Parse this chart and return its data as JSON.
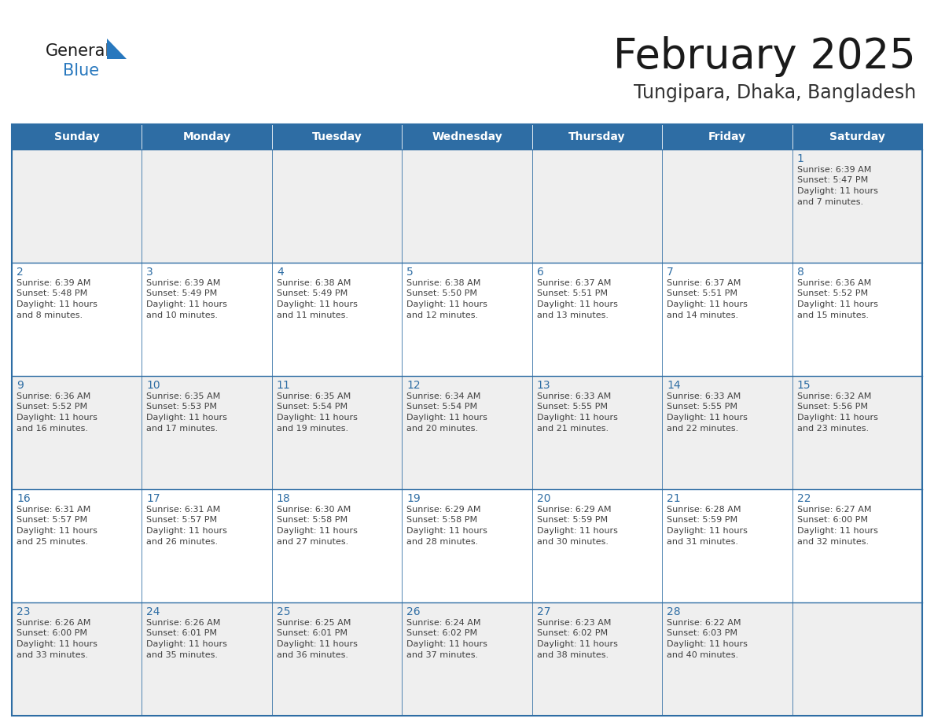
{
  "title": "February 2025",
  "subtitle": "Tungipara, Dhaka, Bangladesh",
  "days_of_week": [
    "Sunday",
    "Monday",
    "Tuesday",
    "Wednesday",
    "Thursday",
    "Friday",
    "Saturday"
  ],
  "header_bg": "#2E6DA4",
  "header_text": "#FFFFFF",
  "cell_bg": "#EFEFEF",
  "cell_bg_alt": "#FFFFFF",
  "border_color": "#2E6DA4",
  "day_num_color": "#2E6DA4",
  "cell_text_color": "#404040",
  "title_color": "#1a1a1a",
  "subtitle_color": "#333333",
  "logo_general_color": "#1a1a1a",
  "logo_blue_color": "#2878BE",
  "calendar_data": [
    [
      null,
      null,
      null,
      null,
      null,
      null,
      {
        "day": 1,
        "sunrise": "6:39 AM",
        "sunset": "5:47 PM",
        "daylight": "11 hours",
        "daylight2": "and 7 minutes."
      }
    ],
    [
      {
        "day": 2,
        "sunrise": "6:39 AM",
        "sunset": "5:48 PM",
        "daylight": "11 hours",
        "daylight2": "and 8 minutes."
      },
      {
        "day": 3,
        "sunrise": "6:39 AM",
        "sunset": "5:49 PM",
        "daylight": "11 hours",
        "daylight2": "and 10 minutes."
      },
      {
        "day": 4,
        "sunrise": "6:38 AM",
        "sunset": "5:49 PM",
        "daylight": "11 hours",
        "daylight2": "and 11 minutes."
      },
      {
        "day": 5,
        "sunrise": "6:38 AM",
        "sunset": "5:50 PM",
        "daylight": "11 hours",
        "daylight2": "and 12 minutes."
      },
      {
        "day": 6,
        "sunrise": "6:37 AM",
        "sunset": "5:51 PM",
        "daylight": "11 hours",
        "daylight2": "and 13 minutes."
      },
      {
        "day": 7,
        "sunrise": "6:37 AM",
        "sunset": "5:51 PM",
        "daylight": "11 hours",
        "daylight2": "and 14 minutes."
      },
      {
        "day": 8,
        "sunrise": "6:36 AM",
        "sunset": "5:52 PM",
        "daylight": "11 hours",
        "daylight2": "and 15 minutes."
      }
    ],
    [
      {
        "day": 9,
        "sunrise": "6:36 AM",
        "sunset": "5:52 PM",
        "daylight": "11 hours",
        "daylight2": "and 16 minutes."
      },
      {
        "day": 10,
        "sunrise": "6:35 AM",
        "sunset": "5:53 PM",
        "daylight": "11 hours",
        "daylight2": "and 17 minutes."
      },
      {
        "day": 11,
        "sunrise": "6:35 AM",
        "sunset": "5:54 PM",
        "daylight": "11 hours",
        "daylight2": "and 19 minutes."
      },
      {
        "day": 12,
        "sunrise": "6:34 AM",
        "sunset": "5:54 PM",
        "daylight": "11 hours",
        "daylight2": "and 20 minutes."
      },
      {
        "day": 13,
        "sunrise": "6:33 AM",
        "sunset": "5:55 PM",
        "daylight": "11 hours",
        "daylight2": "and 21 minutes."
      },
      {
        "day": 14,
        "sunrise": "6:33 AM",
        "sunset": "5:55 PM",
        "daylight": "11 hours",
        "daylight2": "and 22 minutes."
      },
      {
        "day": 15,
        "sunrise": "6:32 AM",
        "sunset": "5:56 PM",
        "daylight": "11 hours",
        "daylight2": "and 23 minutes."
      }
    ],
    [
      {
        "day": 16,
        "sunrise": "6:31 AM",
        "sunset": "5:57 PM",
        "daylight": "11 hours",
        "daylight2": "and 25 minutes."
      },
      {
        "day": 17,
        "sunrise": "6:31 AM",
        "sunset": "5:57 PM",
        "daylight": "11 hours",
        "daylight2": "and 26 minutes."
      },
      {
        "day": 18,
        "sunrise": "6:30 AM",
        "sunset": "5:58 PM",
        "daylight": "11 hours",
        "daylight2": "and 27 minutes."
      },
      {
        "day": 19,
        "sunrise": "6:29 AM",
        "sunset": "5:58 PM",
        "daylight": "11 hours",
        "daylight2": "and 28 minutes."
      },
      {
        "day": 20,
        "sunrise": "6:29 AM",
        "sunset": "5:59 PM",
        "daylight": "11 hours",
        "daylight2": "and 30 minutes."
      },
      {
        "day": 21,
        "sunrise": "6:28 AM",
        "sunset": "5:59 PM",
        "daylight": "11 hours",
        "daylight2": "and 31 minutes."
      },
      {
        "day": 22,
        "sunrise": "6:27 AM",
        "sunset": "6:00 PM",
        "daylight": "11 hours",
        "daylight2": "and 32 minutes."
      }
    ],
    [
      {
        "day": 23,
        "sunrise": "6:26 AM",
        "sunset": "6:00 PM",
        "daylight": "11 hours",
        "daylight2": "and 33 minutes."
      },
      {
        "day": 24,
        "sunrise": "6:26 AM",
        "sunset": "6:01 PM",
        "daylight": "11 hours",
        "daylight2": "and 35 minutes."
      },
      {
        "day": 25,
        "sunrise": "6:25 AM",
        "sunset": "6:01 PM",
        "daylight": "11 hours",
        "daylight2": "and 36 minutes."
      },
      {
        "day": 26,
        "sunrise": "6:24 AM",
        "sunset": "6:02 PM",
        "daylight": "11 hours",
        "daylight2": "and 37 minutes."
      },
      {
        "day": 27,
        "sunrise": "6:23 AM",
        "sunset": "6:02 PM",
        "daylight": "11 hours",
        "daylight2": "and 38 minutes."
      },
      {
        "day": 28,
        "sunrise": "6:22 AM",
        "sunset": "6:03 PM",
        "daylight": "11 hours",
        "daylight2": "and 40 minutes."
      },
      null
    ]
  ]
}
